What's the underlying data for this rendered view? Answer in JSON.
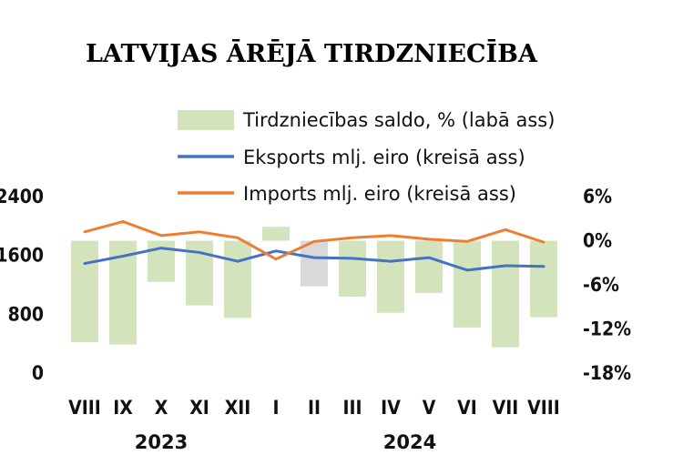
{
  "chart_data": {
    "type": "bar+line",
    "title": "LATVIJAS ĀRĒJĀ TIRDZNIECĪBA",
    "categories": [
      "VIII",
      "IX",
      "X",
      "XI",
      "XII",
      "I",
      "II",
      "III",
      "IV",
      "V",
      "VI",
      "VII",
      "VIII"
    ],
    "year_labels": [
      "2023",
      "2024"
    ],
    "series": [
      {
        "name": "Tirdzniecības saldo, % (labā ass)",
        "type": "bar",
        "axis": "right",
        "color": "#d3e4bd",
        "highlight_color": "#d9d9d9",
        "highlight_index": 6,
        "values": [
          -13.8,
          -14.1,
          -5.6,
          -8.8,
          -10.5,
          1.9,
          -6.2,
          -7.6,
          -9.8,
          -7.1,
          -11.8,
          -14.5,
          -10.4
        ]
      },
      {
        "name": "Eksports mlj. eiro (kreisā ass)",
        "type": "line",
        "axis": "left",
        "color": "#4472c4",
        "values": [
          1490,
          1590,
          1700,
          1640,
          1520,
          1660,
          1570,
          1560,
          1520,
          1570,
          1400,
          1460,
          1450
        ]
      },
      {
        "name": "Imports mlj. eiro (kreisā ass)",
        "type": "line",
        "axis": "left",
        "color": "#ed7d31",
        "values": [
          1920,
          2060,
          1870,
          1920,
          1840,
          1550,
          1790,
          1840,
          1870,
          1820,
          1790,
          1950,
          1780
        ]
      }
    ],
    "y_left": {
      "ticks": [
        "0",
        "800",
        "1600",
        "2400"
      ],
      "lim": [
        0,
        2400
      ]
    },
    "y_right": {
      "ticks": [
        "-18%",
        "-12%",
        "-6%",
        "0%",
        "6%"
      ],
      "lim": [
        -18,
        6
      ]
    },
    "legend_position": "top-right",
    "grid": false
  }
}
